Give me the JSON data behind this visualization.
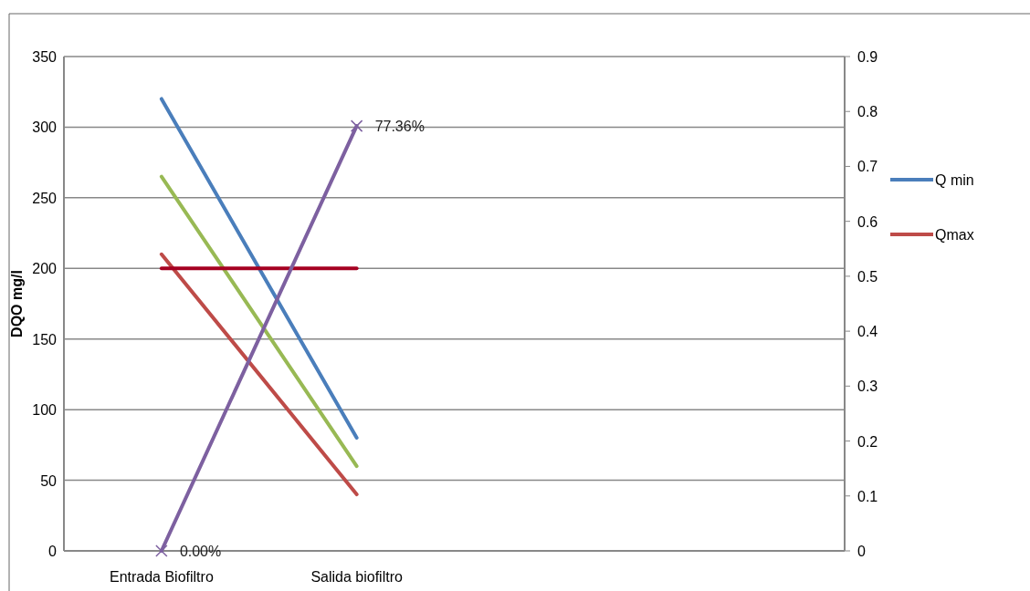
{
  "chart_data": {
    "type": "line",
    "ylabel": "DQO mg/l",
    "categories": [
      "Entrada Biofiltro",
      "Salida biofiltro",
      null,
      null
    ],
    "series": [
      {
        "name": "Q min",
        "color": "#4a7ebb",
        "values": [
          320,
          80,
          null,
          null
        ]
      },
      {
        "color": "#98b954",
        "values": [
          265,
          60,
          null,
          null
        ]
      },
      {
        "name": "Qmax",
        "color": "#be4b48",
        "values": [
          210,
          40,
          null,
          null
        ]
      },
      {
        "color": "#a50021",
        "values": [
          200,
          200,
          null,
          null
        ]
      },
      {
        "color": "#7d60a0",
        "axis": "y2",
        "values": [
          0,
          0.7736,
          null,
          null
        ],
        "marker": "cross",
        "value_labels": [
          "0.00%",
          "77.36%",
          null,
          null
        ]
      }
    ],
    "ylim": [
      0,
      350
    ],
    "yticks": [
      0,
      50,
      100,
      150,
      200,
      250,
      300,
      350
    ],
    "y2lim": [
      0,
      0.9
    ],
    "y2ticks": [
      0,
      {
        "value": 0.1,
        "label": "0.1"
      },
      {
        "value": 0.2,
        "label": "0.2"
      },
      {
        "value": 0.3,
        "label": "0.3"
      },
      {
        "value": 0.4,
        "label": "0.4"
      },
      {
        "value": 0.5,
        "label": "0.5"
      },
      {
        "value": 0.6,
        "label": "0.6"
      },
      {
        "value": 0.7,
        "label": "0.7"
      },
      {
        "value": 0.8,
        "label": "0.8"
      },
      {
        "value": 0.9,
        "label": "0.9"
      }
    ],
    "grid": "y",
    "legend": "right"
  }
}
